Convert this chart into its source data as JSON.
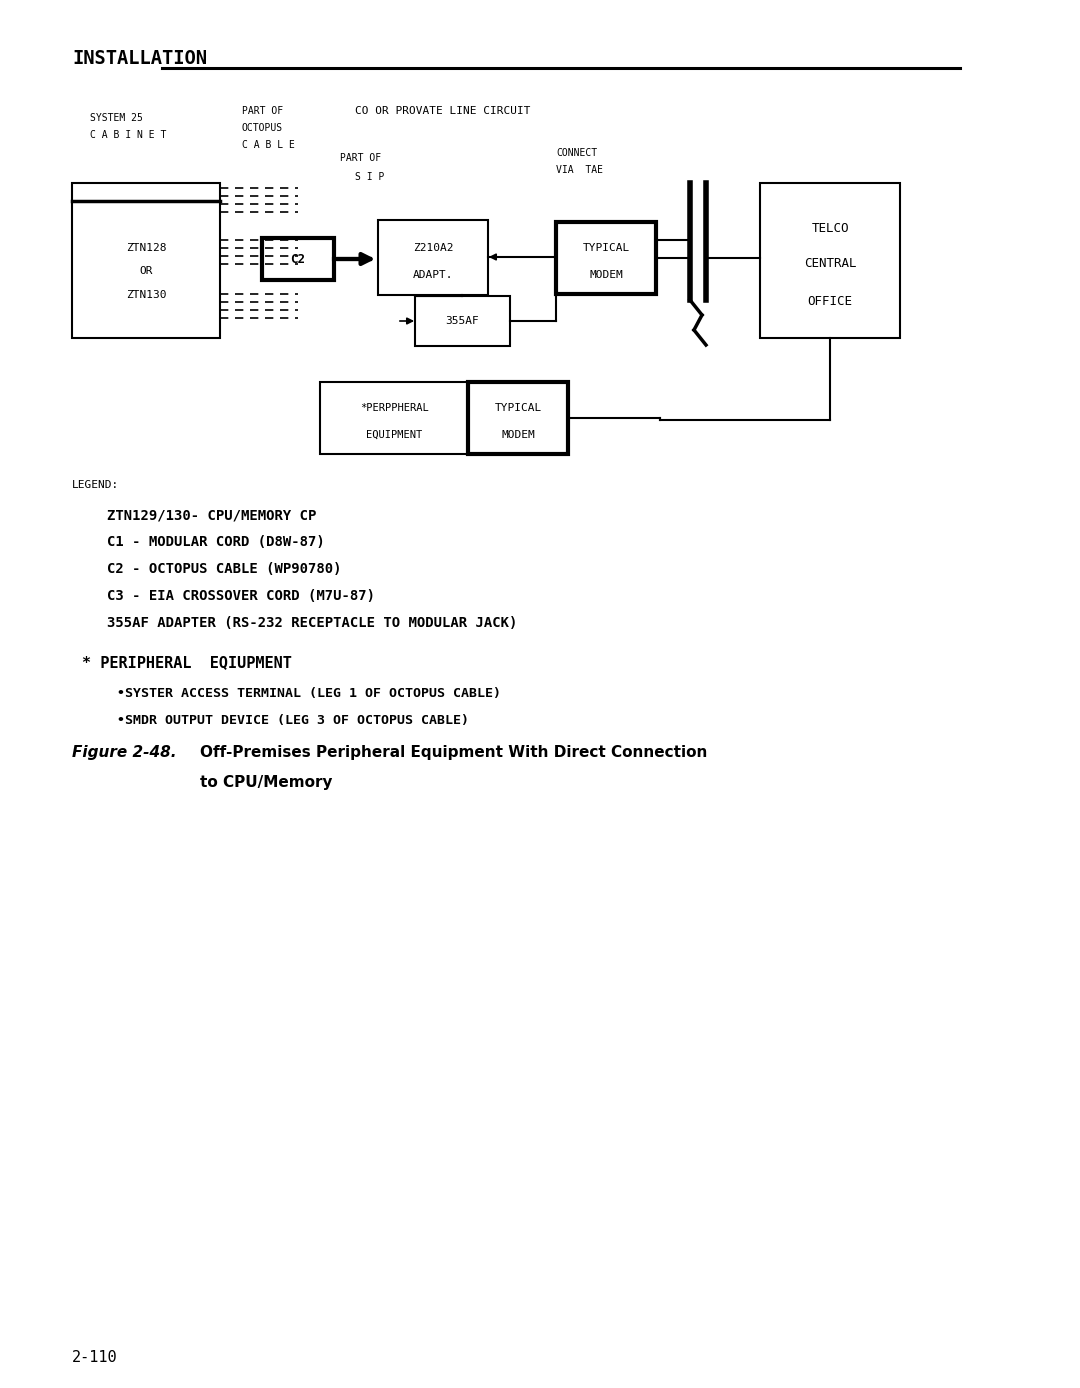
{
  "title": "INSTALLATION",
  "bg_color": "#ffffff",
  "text_color": "#000000",
  "co_label": "CO OR PROVATE LINE CIRCUIT",
  "legend_title": "LEGEND:",
  "legend_lines": [
    "ZTN129/130- CPU/MEMORY CP",
    "C1 - MODULAR CORD (D8W-87)",
    "C2 - OCTOPUS CABLE (WP90780)",
    "C3 - EIA CROSSOVER CORD (M7U-87)",
    "355AF ADAPTER (RS-232 RECEPTACLE TO MODULAR JACK)"
  ],
  "legend_star": "* PERIPHERAL  EQIUPMENT",
  "legend_bullets": [
    "•SYSTER ACCESS TERMINAL (LEG 1 OF OCTOPUS CABLE)",
    "•SMDR OUTPUT DEVICE (LEG 3 OF OCTOPUS CABLE)"
  ],
  "figure_label": "Figure 2-48.",
  "figure_title": "Off-Premises Peripheral Equipment With Direct Connection",
  "figure_title2": "to CPU/Memory",
  "page_number": "2-110"
}
